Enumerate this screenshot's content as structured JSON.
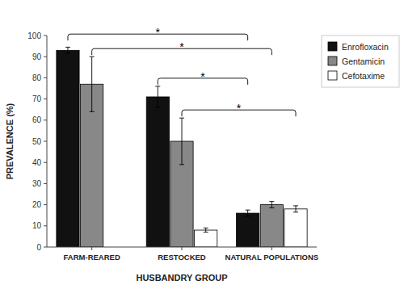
{
  "chart_data": {
    "type": "bar",
    "x_label": "HUSBANDRY GROUP",
    "y_label": "PREVALENCE (%)",
    "categories": [
      "FARM-REARED",
      "RESTOCKED",
      "NATURAL POPULATIONS"
    ],
    "series": [
      {
        "name": "Enrofloxacin",
        "color": "#111111",
        "values": [
          93,
          71,
          16
        ],
        "errors": [
          1.5,
          5.0,
          1.5
        ]
      },
      {
        "name": "Gentamicin",
        "color": "#888888",
        "values": [
          77,
          50,
          20
        ],
        "errors": [
          13,
          11,
          1.5
        ]
      },
      {
        "name": "Cefotaxime",
        "color": "#ffffff",
        "values": [
          0,
          8,
          18
        ],
        "errors": [
          0,
          1.0,
          1.5
        ]
      }
    ],
    "ylim": [
      0,
      100
    ],
    "yticks": [
      0,
      10,
      20,
      30,
      40,
      50,
      60,
      70,
      80,
      90,
      100
    ],
    "grid": false,
    "legend": "upper right",
    "annotations": [
      {
        "text": "*",
        "from": {
          "series": 0,
          "category": 0
        },
        "to": {
          "series": 0,
          "category": 2
        }
      },
      {
        "text": "*",
        "from": {
          "series": 1,
          "category": 0
        },
        "to": {
          "series": 1,
          "category": 2
        }
      },
      {
        "text": "*",
        "from": {
          "series": 0,
          "category": 1
        },
        "to": {
          "series": 0,
          "category": 2
        }
      },
      {
        "text": "*",
        "from": {
          "series": 1,
          "category": 1
        },
        "to": {
          "series": 2,
          "category": 2
        }
      }
    ]
  }
}
